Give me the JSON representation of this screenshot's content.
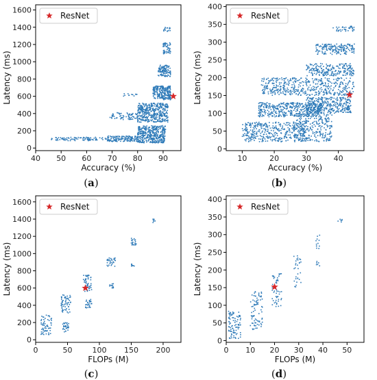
{
  "colors": {
    "scatter": "#2e7ab8",
    "marker": "#d62728",
    "axis": "#000000"
  },
  "chart_data": [
    {
      "type": "scatter",
      "caption": "(a)",
      "caption_letter": "a",
      "xlabel": "Accuracy (%)",
      "ylabel": "Latency (ms)",
      "xlim": [
        40,
        97
      ],
      "ylim": [
        -30,
        1660
      ],
      "xticks": [
        40,
        50,
        60,
        70,
        80,
        90
      ],
      "yticks": [
        0,
        200,
        400,
        600,
        800,
        1000,
        1200,
        1400,
        1600
      ],
      "legend": "top-left",
      "series": [
        {
          "name": "",
          "kind": "point_cloud",
          "clusters": [
            {
              "x": [
                46,
                68
              ],
              "y": [
                85,
                125
              ],
              "n": 90
            },
            {
              "x": [
                68,
                80
              ],
              "y": [
                75,
                140
              ],
              "n": 140
            },
            {
              "x": [
                80,
                91
              ],
              "y": [
                60,
                260
              ],
              "n": 420
            },
            {
              "x": [
                69,
                80
              ],
              "y": [
                330,
                410
              ],
              "n": 70
            },
            {
              "x": [
                80,
                92
              ],
              "y": [
                300,
                520
              ],
              "n": 420
            },
            {
              "x": [
                74,
                80
              ],
              "y": [
                600,
                630
              ],
              "n": 12
            },
            {
              "x": [
                86,
                93
              ],
              "y": [
                560,
                720
              ],
              "n": 240
            },
            {
              "x": [
                88,
                93
              ],
              "y": [
                830,
                960
              ],
              "n": 110
            },
            {
              "x": [
                90,
                93
              ],
              "y": [
                1090,
                1220
              ],
              "n": 50
            },
            {
              "x": [
                90,
                93
              ],
              "y": [
                1350,
                1400
              ],
              "n": 15
            }
          ]
        },
        {
          "name": "ResNet",
          "points": [
            [
              94,
              600
            ]
          ]
        }
      ]
    },
    {
      "type": "scatter",
      "caption": "(b)",
      "caption_letter": "b",
      "xlabel": "Accuracy (%)",
      "ylabel": "Latency (ms)",
      "xlim": [
        5,
        48
      ],
      "ylim": [
        -5,
        405
      ],
      "xticks": [
        10,
        20,
        30,
        40
      ],
      "yticks": [
        0,
        50,
        100,
        150,
        200,
        250,
        300,
        350,
        400
      ],
      "legend": "top-left",
      "series": [
        {
          "name": "",
          "kind": "point_cloud",
          "clusters": [
            {
              "x": [
                10,
                30
              ],
              "y": [
                20,
                75
              ],
              "n": 380
            },
            {
              "x": [
                26,
                38
              ],
              "y": [
                20,
                100
              ],
              "n": 280
            },
            {
              "x": [
                15,
                35
              ],
              "y": [
                90,
                130
              ],
              "n": 420
            },
            {
              "x": [
                30,
                44
              ],
              "y": [
                100,
                145
              ],
              "n": 340
            },
            {
              "x": [
                16,
                45
              ],
              "y": [
                150,
                200
              ],
              "n": 460
            },
            {
              "x": [
                30,
                45
              ],
              "y": [
                205,
                240
              ],
              "n": 220
            },
            {
              "x": [
                33,
                45
              ],
              "y": [
                265,
                295
              ],
              "n": 170
            },
            {
              "x": [
                38,
                45
              ],
              "y": [
                330,
                345
              ],
              "n": 35
            }
          ]
        },
        {
          "name": "ResNet",
          "points": [
            [
              43.5,
              152
            ]
          ]
        }
      ]
    },
    {
      "type": "scatter",
      "caption": "(c)",
      "caption_letter": "c",
      "xlabel": "FLOPs (M)",
      "ylabel": "Latency (ms)",
      "xlim": [
        0,
        228
      ],
      "ylim": [
        -30,
        1670
      ],
      "xticks": [
        0,
        50,
        100,
        150,
        200
      ],
      "yticks": [
        0,
        200,
        400,
        600,
        800,
        1000,
        1200,
        1400,
        1600
      ],
      "legend": "top-left",
      "series": [
        {
          "name": "",
          "kind": "point_cloud",
          "clusters": [
            {
              "x": [
                8,
                25
              ],
              "y": [
                60,
                290
              ],
              "n": 60
            },
            {
              "x": [
                40,
                55
              ],
              "y": [
                310,
                520
              ],
              "n": 60
            },
            {
              "x": [
                42,
                52
              ],
              "y": [
                80,
                200
              ],
              "n": 28
            },
            {
              "x": [
                75,
                88
              ],
              "y": [
                560,
                750
              ],
              "n": 50
            },
            {
              "x": [
                78,
                88
              ],
              "y": [
                360,
                470
              ],
              "n": 28
            },
            {
              "x": [
                112,
                125
              ],
              "y": [
                850,
                950
              ],
              "n": 30
            },
            {
              "x": [
                115,
                122
              ],
              "y": [
                600,
                650
              ],
              "n": 12
            },
            {
              "x": [
                150,
                158
              ],
              "y": [
                1100,
                1180
              ],
              "n": 20
            },
            {
              "x": [
                150,
                156
              ],
              "y": [
                850,
                880
              ],
              "n": 8
            },
            {
              "x": [
                183,
                188
              ],
              "y": [
                1360,
                1400
              ],
              "n": 8
            }
          ]
        },
        {
          "name": "ResNet",
          "points": [
            [
              78,
              600
            ]
          ]
        }
      ]
    },
    {
      "type": "scatter",
      "caption": "(d)",
      "caption_letter": "d",
      "xlabel": "FLOPs (M)",
      "ylabel": "Latency (ms)",
      "xlim": [
        0,
        57
      ],
      "ylim": [
        -5,
        410
      ],
      "xticks": [
        0,
        10,
        20,
        30,
        40,
        50
      ],
      "yticks": [
        0,
        50,
        100,
        150,
        200,
        250,
        300,
        350,
        400
      ],
      "legend": "top-left",
      "series": [
        {
          "name": "",
          "kind": "point_cloud",
          "clusters": [
            {
              "x": [
                1,
                6
              ],
              "y": [
                5,
                85
              ],
              "n": 90
            },
            {
              "x": [
                10,
                15
              ],
              "y": [
                30,
                140
              ],
              "n": 80
            },
            {
              "x": [
                19,
                23
              ],
              "y": [
                95,
                190
              ],
              "n": 50
            },
            {
              "x": [
                28,
                31
              ],
              "y": [
                150,
                240
              ],
              "n": 30
            },
            {
              "x": [
                37,
                39
              ],
              "y": [
                260,
                300
              ],
              "n": 12
            },
            {
              "x": [
                37,
                39
              ],
              "y": [
                210,
                225
              ],
              "n": 6
            },
            {
              "x": [
                46,
                48
              ],
              "y": [
                335,
                345
              ],
              "n": 6
            }
          ]
        },
        {
          "name": "ResNet",
          "points": [
            [
              20,
              152
            ]
          ]
        }
      ]
    }
  ]
}
